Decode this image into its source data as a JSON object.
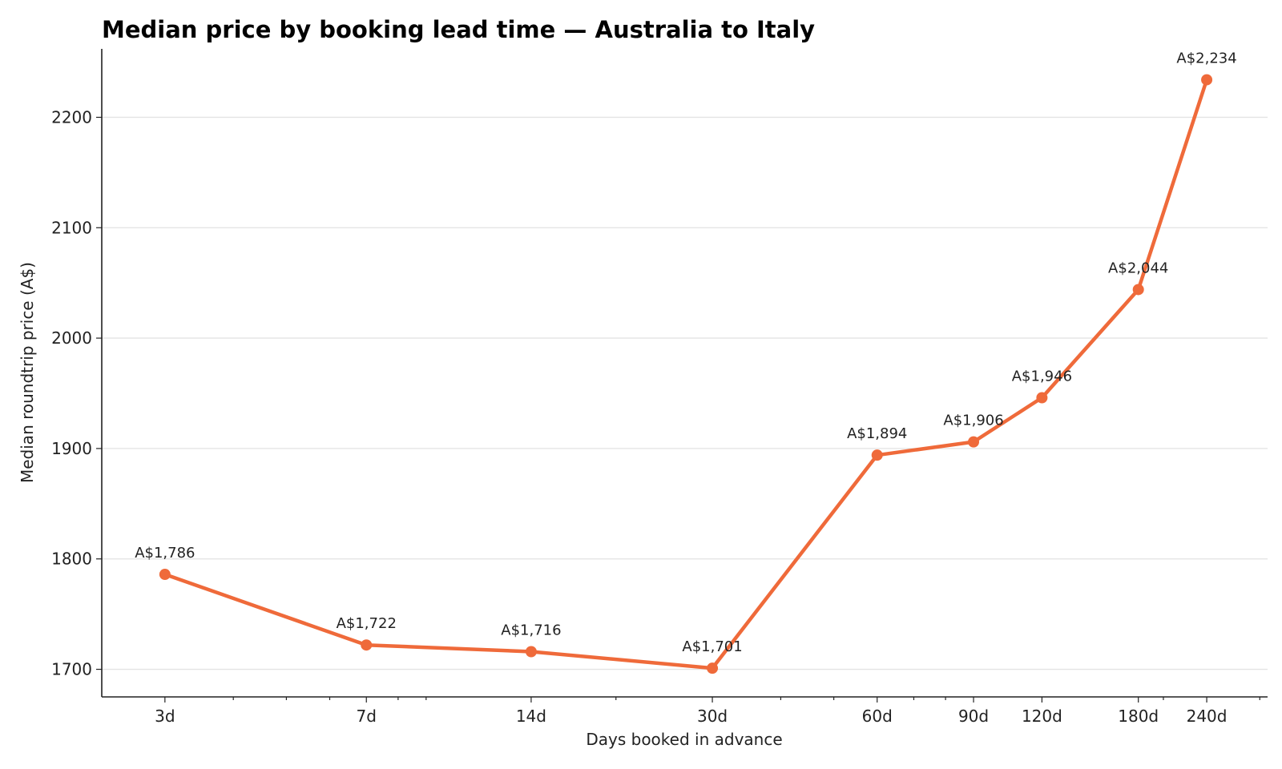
{
  "chart_data": {
    "type": "line",
    "title": "Median price by booking lead time — Australia to Italy",
    "xlabel": "Days booked in advance",
    "ylabel": "Median roundtrip price (A$)",
    "x_scale": "log",
    "x": [
      3,
      7,
      14,
      30,
      60,
      90,
      120,
      180,
      240
    ],
    "x_tick_labels": [
      "3d",
      "7d",
      "14d",
      "30d",
      "60d",
      "90d",
      "120d",
      "180d",
      "240d"
    ],
    "series": [
      {
        "values": [
          1786,
          1722,
          1716,
          1701,
          1894,
          1906,
          1946,
          2044,
          2234
        ],
        "data_labels": [
          "A$1,786",
          "A$1,722",
          "A$1,716",
          "A$1,701",
          "A$1,894",
          "A$1,906",
          "A$1,946",
          "A$2,044",
          "A$2,234"
        ],
        "color": "#ef6a3a"
      }
    ],
    "y_ticks": [
      1700,
      1800,
      1900,
      2000,
      2100,
      2200
    ],
    "ylim": [
      1675,
      2262
    ],
    "xlim": [
      2.3,
      310
    ],
    "grid": "horizontal",
    "legend": "none"
  }
}
